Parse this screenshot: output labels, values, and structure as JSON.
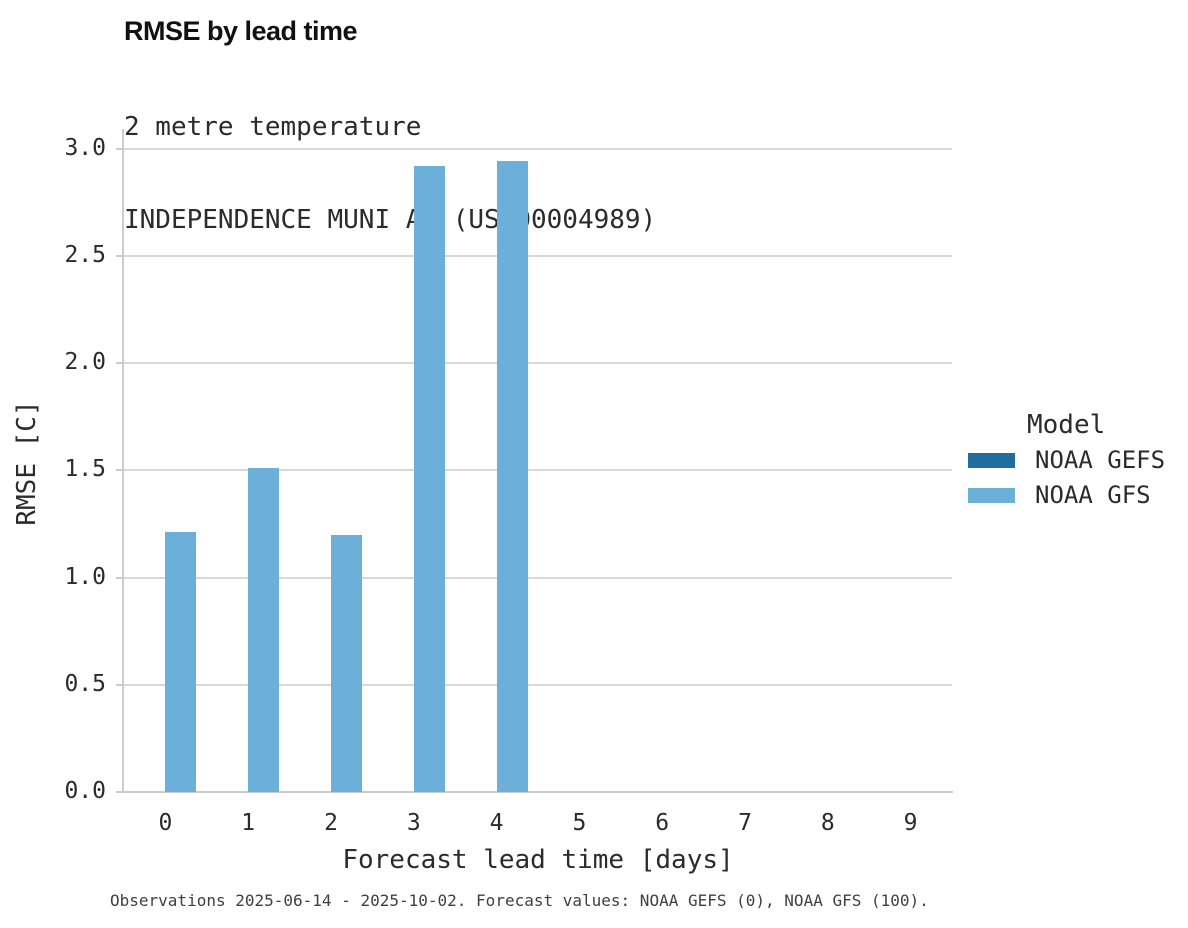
{
  "header": {
    "title": "RMSE by lead time",
    "subtitle_line1": "2 metre temperature",
    "subtitle_line2": "INDEPENDENCE MUNI AP (USW00004989)"
  },
  "axes": {
    "x_title": "Forecast lead time [days]",
    "y_title": "RMSE [C]"
  },
  "legend": {
    "title": "Model",
    "items": [
      {
        "label": "NOAA GEFS",
        "color": "#1f6e9e"
      },
      {
        "label": "NOAA GFS",
        "color": "#6cb0d9"
      }
    ]
  },
  "footer": {
    "note": "Observations 2025-06-14 - 2025-10-02. Forecast values: NOAA GEFS (0), NOAA GFS (100)."
  },
  "chart_data": {
    "type": "bar",
    "title": "RMSE by lead time",
    "subtitle": [
      "2 metre temperature",
      "INDEPENDENCE MUNI AP (USW00004989)"
    ],
    "xlabel": "Forecast lead time [days]",
    "ylabel": "RMSE [C]",
    "categories": [
      "0",
      "1",
      "2",
      "3",
      "4",
      "5",
      "6",
      "7",
      "8",
      "9"
    ],
    "series": [
      {
        "name": "NOAA GEFS",
        "color": "#1f6e9e",
        "values": [
          null,
          null,
          null,
          null,
          null,
          null,
          null,
          null,
          null,
          null
        ]
      },
      {
        "name": "NOAA GFS",
        "color": "#6cb0d9",
        "values": [
          1.21,
          1.51,
          1.2,
          2.92,
          2.94,
          null,
          null,
          null,
          null,
          null
        ]
      }
    ],
    "ylim": [
      0,
      3.0
    ],
    "yticks": [
      "0.0",
      "0.5",
      "1.0",
      "1.5",
      "2.0",
      "2.5",
      "3.0"
    ],
    "grid": true,
    "legend_title": "Model",
    "legend_position": "right",
    "colors": {
      "grid": "#d8d8d8",
      "axis": "#cccccc",
      "text": "#2b2b2b"
    },
    "footnote": "Observations 2025-06-14 - 2025-10-02. Forecast values: NOAA GEFS (0), NOAA GFS (100)."
  }
}
